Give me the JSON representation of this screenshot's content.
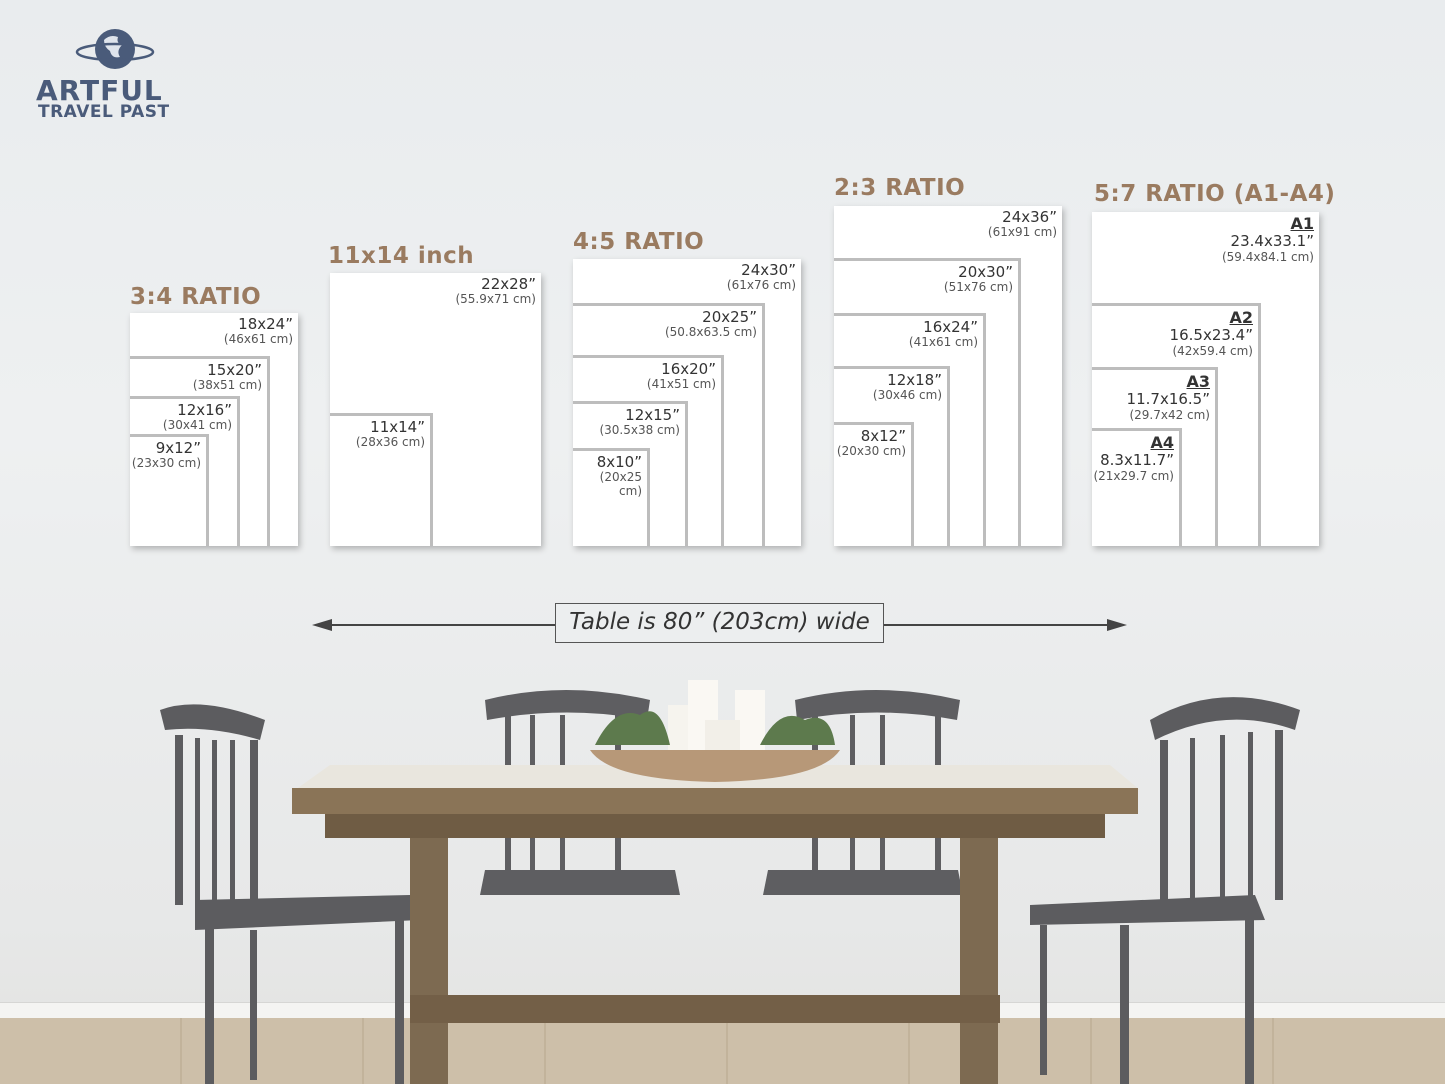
{
  "logo": {
    "line1": "ARTFUL",
    "line2": "TRAVEL PAST",
    "icon": "globe-icon"
  },
  "colors": {
    "heading": "#9a7b60",
    "logo": "#4a5b7a",
    "frame_border": "#bdbdbd"
  },
  "groups": [
    {
      "heading": "3:4 RATIO",
      "sizes": [
        {
          "inch": "18x24”",
          "cm": "(46x61 cm)"
        },
        {
          "inch": "15x20”",
          "cm": "(38x51 cm)"
        },
        {
          "inch": "12x16”",
          "cm": "(30x41 cm)"
        },
        {
          "inch": "9x12”",
          "cm": "(23x30 cm)"
        }
      ]
    },
    {
      "heading": "11x14 inch",
      "sizes": [
        {
          "inch": "22x28”",
          "cm": "(55.9x71 cm)"
        },
        {
          "inch": "11x14”",
          "cm": "(28x36 cm)"
        }
      ]
    },
    {
      "heading": "4:5 RATIO",
      "sizes": [
        {
          "inch": "24x30”",
          "cm": "(61x76 cm)"
        },
        {
          "inch": "20x25”",
          "cm": "(50.8x63.5 cm)"
        },
        {
          "inch": "16x20”",
          "cm": "(41x51 cm)"
        },
        {
          "inch": "12x15”",
          "cm": "(30.5x38 cm)"
        },
        {
          "inch": "8x10”",
          "cm": "(20x25 cm)"
        }
      ]
    },
    {
      "heading": "2:3 RATIO",
      "sizes": [
        {
          "inch": "24x36”",
          "cm": "(61x91 cm)"
        },
        {
          "inch": "20x30”",
          "cm": "(51x76 cm)"
        },
        {
          "inch": "16x24”",
          "cm": "(41x61 cm)"
        },
        {
          "inch": "12x18”",
          "cm": "(30x46 cm)"
        },
        {
          "inch": "8x12”",
          "cm": "(20x30 cm)"
        }
      ]
    },
    {
      "heading": "5:7 RATIO (A1-A4)",
      "sizes": [
        {
          "name": "A1",
          "inch": "23.4x33.1”",
          "cm": "(59.4x84.1 cm)"
        },
        {
          "name": "A2",
          "inch": "16.5x23.4”",
          "cm": "(42x59.4 cm)"
        },
        {
          "name": "A3",
          "inch": "11.7x16.5”",
          "cm": "(29.7x42 cm)"
        },
        {
          "name": "A4",
          "inch": "8.3x11.7”",
          "cm": "(21x29.7 cm)"
        }
      ]
    }
  ],
  "table_width": {
    "label": "Table is 80” (203cm) wide"
  }
}
